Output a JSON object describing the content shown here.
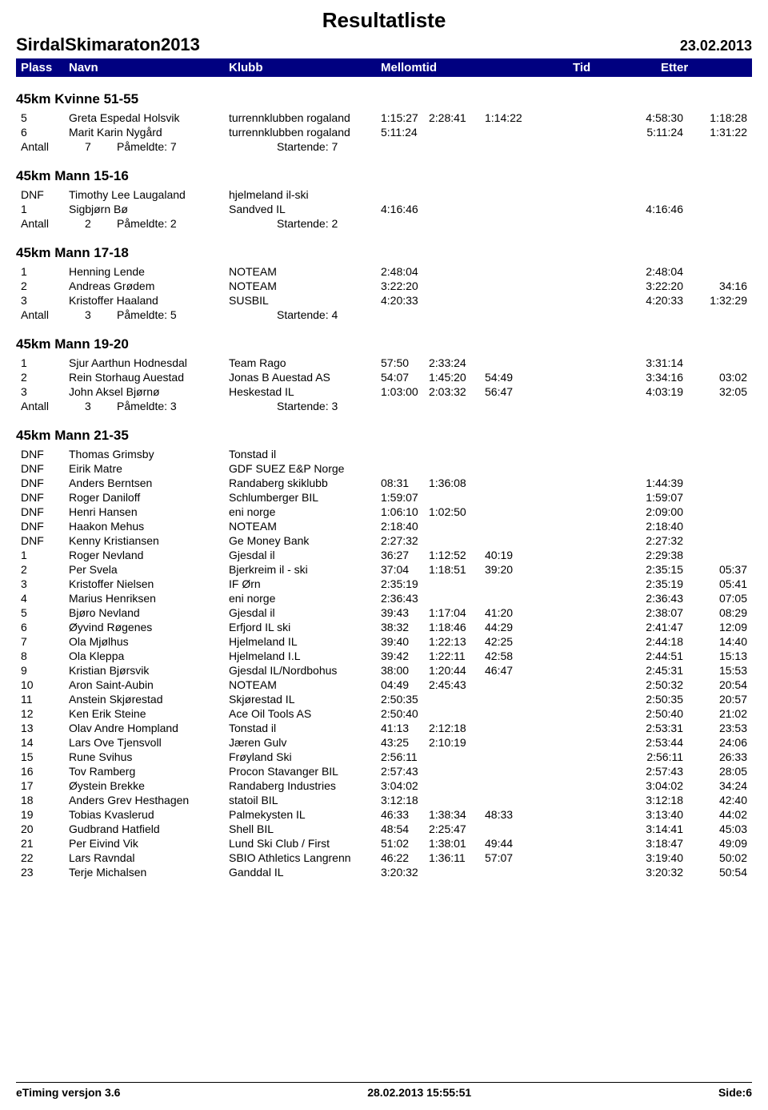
{
  "title": "Resultatliste",
  "event": "SirdalSkimaraton2013",
  "date": "23.02.2013",
  "header": {
    "plass": "Plass",
    "navn": "Navn",
    "klubb": "Klubb",
    "mellomtid": "Mellomtid",
    "tid": "Tid",
    "etter": "Etter"
  },
  "antall_labels": {
    "antall": "Antall",
    "pameldte": "Påmeldte:",
    "startende": "Startende:"
  },
  "categories": [
    {
      "title": "45km Kvinne 51-55",
      "rows": [
        {
          "p": "5",
          "n": "Greta Espedal Holsvik",
          "k": "turrennklubben rogaland",
          "m1": "1:15:27",
          "m2": "2:28:41",
          "m3": "1:14:22",
          "tid": "4:58:30",
          "etter": "1:18:28"
        },
        {
          "p": "6",
          "n": "Marit Karin Nygård",
          "k": "turrennklubben rogaland",
          "m1": "5:11:24",
          "m2": "",
          "m3": "",
          "tid": "5:11:24",
          "etter": "1:31:22"
        }
      ],
      "antall": {
        "n": "7",
        "pam": "7",
        "start": "7"
      }
    },
    {
      "title": "45km Mann 15-16",
      "rows": [
        {
          "p": "DNF",
          "n": "Timothy Lee Laugaland",
          "k": "hjelmeland il-ski",
          "m1": "",
          "m2": "",
          "m3": "",
          "tid": "",
          "etter": ""
        },
        {
          "p": "1",
          "n": "Sigbjørn Bø",
          "k": "Sandved IL",
          "m1": "4:16:46",
          "m2": "",
          "m3": "",
          "tid": "4:16:46",
          "etter": ""
        }
      ],
      "antall": {
        "n": "2",
        "pam": "2",
        "start": "2"
      }
    },
    {
      "title": "45km Mann 17-18",
      "rows": [
        {
          "p": "1",
          "n": "Henning Lende",
          "k": "NOTEAM",
          "m1": "2:48:04",
          "m2": "",
          "m3": "",
          "tid": "2:48:04",
          "etter": ""
        },
        {
          "p": "2",
          "n": "Andreas Grødem",
          "k": "NOTEAM",
          "m1": "3:22:20",
          "m2": "",
          "m3": "",
          "tid": "3:22:20",
          "etter": "34:16"
        },
        {
          "p": "3",
          "n": "Kristoffer Haaland",
          "k": "SUSBIL",
          "m1": "4:20:33",
          "m2": "",
          "m3": "",
          "tid": "4:20:33",
          "etter": "1:32:29"
        }
      ],
      "antall": {
        "n": "3",
        "pam": "5",
        "start": "4"
      }
    },
    {
      "title": "45km Mann 19-20",
      "rows": [
        {
          "p": "1",
          "n": "Sjur Aarthun Hodnesdal",
          "k": "Team Rago",
          "m1": "57:50",
          "m2": "2:33:24",
          "m3": "",
          "tid": "3:31:14",
          "etter": ""
        },
        {
          "p": "2",
          "n": "Rein Storhaug Auestad",
          "k": "Jonas B Auestad AS",
          "m1": "54:07",
          "m2": "1:45:20",
          "m3": "54:49",
          "tid": "3:34:16",
          "etter": "03:02"
        },
        {
          "p": "3",
          "n": "John Aksel Bjørnø",
          "k": "Heskestad IL",
          "m1": "1:03:00",
          "m2": "2:03:32",
          "m3": "56:47",
          "tid": "4:03:19",
          "etter": "32:05"
        }
      ],
      "antall": {
        "n": "3",
        "pam": "3",
        "start": "3"
      }
    },
    {
      "title": "45km Mann 21-35",
      "rows": [
        {
          "p": "DNF",
          "n": "Thomas Grimsby",
          "k": "Tonstad il",
          "m1": "",
          "m2": "",
          "m3": "",
          "tid": "",
          "etter": ""
        },
        {
          "p": "DNF",
          "n": "Eirik Matre",
          "k": "GDF SUEZ E&P Norge",
          "m1": "",
          "m2": "",
          "m3": "",
          "tid": "",
          "etter": ""
        },
        {
          "p": "DNF",
          "n": "Anders Berntsen",
          "k": "Randaberg skiklubb",
          "m1": "08:31",
          "m2": "1:36:08",
          "m3": "",
          "tid": "1:44:39",
          "etter": ""
        },
        {
          "p": "DNF",
          "n": "Roger Daniloff",
          "k": "Schlumberger BIL",
          "m1": "1:59:07",
          "m2": "",
          "m3": "",
          "tid": "1:59:07",
          "etter": ""
        },
        {
          "p": "DNF",
          "n": "Henri Hansen",
          "k": "eni norge",
          "m1": "1:06:10",
          "m2": "1:02:50",
          "m3": "",
          "tid": "2:09:00",
          "etter": ""
        },
        {
          "p": "DNF",
          "n": "Haakon Mehus",
          "k": "NOTEAM",
          "m1": "2:18:40",
          "m2": "",
          "m3": "",
          "tid": "2:18:40",
          "etter": ""
        },
        {
          "p": "DNF",
          "n": "Kenny Kristiansen",
          "k": "Ge Money Bank",
          "m1": "2:27:32",
          "m2": "",
          "m3": "",
          "tid": "2:27:32",
          "etter": ""
        },
        {
          "p": "1",
          "n": "Roger Nevland",
          "k": "Gjesdal il",
          "m1": "36:27",
          "m2": "1:12:52",
          "m3": "40:19",
          "tid": "2:29:38",
          "etter": ""
        },
        {
          "p": "2",
          "n": "Per Svela",
          "k": "Bjerkreim il - ski",
          "m1": "37:04",
          "m2": "1:18:51",
          "m3": "39:20",
          "tid": "2:35:15",
          "etter": "05:37"
        },
        {
          "p": "3",
          "n": "Kristoffer Nielsen",
          "k": "IF Ørn",
          "m1": "2:35:19",
          "m2": "",
          "m3": "",
          "tid": "2:35:19",
          "etter": "05:41"
        },
        {
          "p": "4",
          "n": "Marius Henriksen",
          "k": "eni norge",
          "m1": "2:36:43",
          "m2": "",
          "m3": "",
          "tid": "2:36:43",
          "etter": "07:05"
        },
        {
          "p": "5",
          "n": "Bjøro Nevland",
          "k": "Gjesdal il",
          "m1": "39:43",
          "m2": "1:17:04",
          "m3": "41:20",
          "tid": "2:38:07",
          "etter": "08:29"
        },
        {
          "p": "6",
          "n": "Øyvind Røgenes",
          "k": "Erfjord IL ski",
          "m1": "38:32",
          "m2": "1:18:46",
          "m3": "44:29",
          "tid": "2:41:47",
          "etter": "12:09"
        },
        {
          "p": "7",
          "n": "Ola Mjølhus",
          "k": "Hjelmeland IL",
          "m1": "39:40",
          "m2": "1:22:13",
          "m3": "42:25",
          "tid": "2:44:18",
          "etter": "14:40"
        },
        {
          "p": "8",
          "n": "Ola Kleppa",
          "k": "Hjelmeland I.L",
          "m1": "39:42",
          "m2": "1:22:11",
          "m3": "42:58",
          "tid": "2:44:51",
          "etter": "15:13"
        },
        {
          "p": "9",
          "n": "Kristian Bjørsvik",
          "k": "Gjesdal IL/Nordbohus",
          "m1": "38:00",
          "m2": "1:20:44",
          "m3": "46:47",
          "tid": "2:45:31",
          "etter": "15:53"
        },
        {
          "p": "10",
          "n": "Aron Saint-Aubin",
          "k": "NOTEAM",
          "m1": "04:49",
          "m2": "2:45:43",
          "m3": "",
          "tid": "2:50:32",
          "etter": "20:54"
        },
        {
          "p": "11",
          "n": "Anstein Skjørestad",
          "k": "Skjørestad IL",
          "m1": "2:50:35",
          "m2": "",
          "m3": "",
          "tid": "2:50:35",
          "etter": "20:57"
        },
        {
          "p": "12",
          "n": "Ken Erik Steine",
          "k": "Ace Oil Tools AS",
          "m1": "2:50:40",
          "m2": "",
          "m3": "",
          "tid": "2:50:40",
          "etter": "21:02"
        },
        {
          "p": "13",
          "n": "Olav Andre Hompland",
          "k": "Tonstad il",
          "m1": "41:13",
          "m2": "2:12:18",
          "m3": "",
          "tid": "2:53:31",
          "etter": "23:53"
        },
        {
          "p": "14",
          "n": "Lars Ove Tjensvoll",
          "k": "Jæren Gulv",
          "m1": "43:25",
          "m2": "2:10:19",
          "m3": "",
          "tid": "2:53:44",
          "etter": "24:06"
        },
        {
          "p": "15",
          "n": "Rune Svihus",
          "k": "Frøyland Ski",
          "m1": "2:56:11",
          "m2": "",
          "m3": "",
          "tid": "2:56:11",
          "etter": "26:33"
        },
        {
          "p": "16",
          "n": "Tov Ramberg",
          "k": "Procon Stavanger BIL",
          "m1": "2:57:43",
          "m2": "",
          "m3": "",
          "tid": "2:57:43",
          "etter": "28:05"
        },
        {
          "p": "17",
          "n": "Øystein Brekke",
          "k": "Randaberg Industries",
          "m1": "3:04:02",
          "m2": "",
          "m3": "",
          "tid": "3:04:02",
          "etter": "34:24"
        },
        {
          "p": "18",
          "n": "Anders Grev Hesthagen",
          "k": "statoil BIL",
          "m1": "3:12:18",
          "m2": "",
          "m3": "",
          "tid": "3:12:18",
          "etter": "42:40"
        },
        {
          "p": "19",
          "n": "Tobias Kvaslerud",
          "k": "Palmekysten IL",
          "m1": "46:33",
          "m2": "1:38:34",
          "m3": "48:33",
          "tid": "3:13:40",
          "etter": "44:02"
        },
        {
          "p": "20",
          "n": "Gudbrand Hatfield",
          "k": "Shell BIL",
          "m1": "48:54",
          "m2": "2:25:47",
          "m3": "",
          "tid": "3:14:41",
          "etter": "45:03"
        },
        {
          "p": "21",
          "n": "Per Eivind Vik",
          "k": "Lund Ski Club / First",
          "m1": "51:02",
          "m2": "1:38:01",
          "m3": "49:44",
          "tid": "3:18:47",
          "etter": "49:09"
        },
        {
          "p": "22",
          "n": "Lars Ravndal",
          "k": "SBIO Athletics Langrenn",
          "m1": "46:22",
          "m2": "1:36:11",
          "m3": "57:07",
          "tid": "3:19:40",
          "etter": "50:02"
        },
        {
          "p": "23",
          "n": "Terje Michalsen",
          "k": "Ganddal IL",
          "m1": "3:20:32",
          "m2": "",
          "m3": "",
          "tid": "3:20:32",
          "etter": "50:54"
        }
      ],
      "antall": null
    }
  ],
  "footer": {
    "left": "eTiming versjon 3.6",
    "center": "28.02.2013 15:55:51",
    "right": "Side:6"
  }
}
